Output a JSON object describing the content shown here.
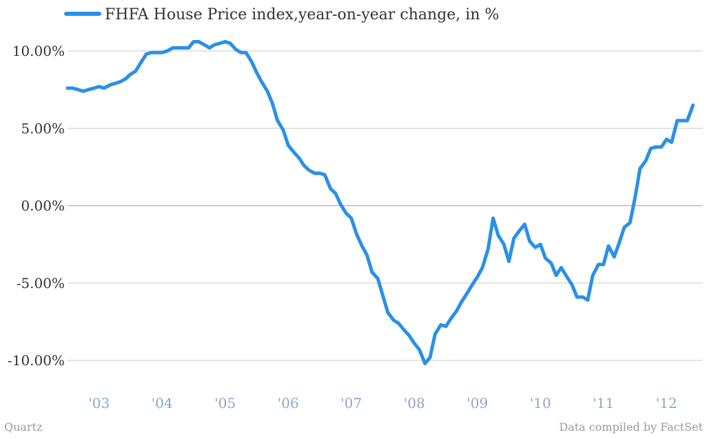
{
  "chart_data": {
    "type": "line",
    "series": [
      {
        "name": "FHFA House Price index,year-on-year change, in %",
        "color": "#2a90e8",
        "x": [
          2002.7,
          2002.78,
          2002.87,
          2002.95,
          2003.03,
          2003.12,
          2003.2,
          2003.28,
          2003.37,
          2003.45,
          2003.53,
          2003.62,
          2003.7,
          2003.78,
          2003.87,
          2003.95,
          2004.03,
          2004.12,
          2004.2,
          2004.28,
          2004.37,
          2004.45,
          2004.53,
          2004.62,
          2004.7,
          2004.78,
          2004.87,
          2004.95,
          2005.03,
          2005.12,
          2005.2,
          2005.28,
          2005.37,
          2005.45,
          2005.53,
          2005.62,
          2005.7,
          2005.78,
          2005.87,
          2005.95,
          2006.03,
          2006.12,
          2006.2,
          2006.28,
          2006.37,
          2006.45,
          2006.53,
          2006.62,
          2006.7,
          2006.78,
          2006.87,
          2006.95,
          2007.03,
          2007.12,
          2007.2,
          2007.28,
          2007.37,
          2007.45,
          2007.53,
          2007.62,
          2007.7,
          2007.78,
          2007.87,
          2007.95,
          2008.03,
          2008.12,
          2008.2,
          2008.28,
          2008.37,
          2008.45,
          2008.53,
          2008.62,
          2008.7,
          2008.78,
          2008.87,
          2008.95,
          2009.03,
          2009.12,
          2009.2,
          2009.28,
          2009.37,
          2009.45,
          2009.53,
          2009.62,
          2009.7,
          2009.78,
          2009.87,
          2009.95,
          2010.03,
          2010.12,
          2010.2,
          2010.28,
          2010.37,
          2010.45,
          2010.53,
          2010.62,
          2010.7,
          2010.78,
          2010.87,
          2010.95,
          2011.03,
          2011.12,
          2011.2,
          2011.28,
          2011.37,
          2011.45,
          2011.53,
          2011.62,
          2011.7,
          2011.78,
          2011.87,
          2011.95,
          2012.03,
          2012.12,
          2012.2,
          2012.28,
          2012.37,
          2012.45,
          2012.53,
          2012.62
        ],
        "values": [
          7.6,
          7.6,
          7.5,
          7.4,
          7.5,
          7.6,
          7.7,
          7.6,
          7.8,
          7.9,
          8.0,
          8.2,
          8.5,
          8.7,
          9.3,
          9.8,
          9.9,
          9.9,
          9.9,
          10.0,
          10.2,
          10.2,
          10.2,
          10.2,
          10.6,
          10.6,
          10.4,
          10.2,
          10.4,
          10.5,
          10.6,
          10.5,
          10.1,
          9.9,
          9.9,
          9.3,
          8.6,
          8.0,
          7.4,
          6.6,
          5.5,
          4.9,
          3.9,
          3.5,
          3.1,
          2.6,
          2.3,
          2.1,
          2.1,
          2.0,
          1.1,
          0.8,
          0.1,
          -0.5,
          -0.8,
          -1.8,
          -2.6,
          -3.2,
          -4.3,
          -4.7,
          -5.8,
          -6.9,
          -7.4,
          -7.6,
          -8.0,
          -8.4,
          -8.9,
          -9.3,
          -10.2,
          -9.8,
          -8.3,
          -7.7,
          -7.8,
          -7.3,
          -6.8,
          -6.2,
          -5.7,
          -5.1,
          -4.6,
          -4.0,
          -2.8,
          -0.8,
          -1.9,
          -2.5,
          -3.6,
          -2.1,
          -1.6,
          -1.2,
          -2.3,
          -2.7,
          -2.5,
          -3.4,
          -3.7,
          -4.5,
          -4.0,
          -4.6,
          -5.1,
          -5.9,
          -5.9,
          -6.1,
          -4.5,
          -3.8,
          -3.8,
          -2.6,
          -3.3,
          -2.4,
          -1.4,
          -1.1,
          0.5,
          2.4,
          2.9,
          3.7,
          3.8,
          3.8,
          4.3,
          4.1,
          5.5,
          5.5,
          5.5,
          6.5
        ]
      }
    ],
    "x_ticks": [
      {
        "value": 2003.2,
        "label": "'03"
      },
      {
        "value": 2004.2,
        "label": "'04"
      },
      {
        "value": 2005.2,
        "label": "'05"
      },
      {
        "value": 2006.2,
        "label": "'06"
      },
      {
        "value": 2007.2,
        "label": "'07"
      },
      {
        "value": 2008.2,
        "label": "'08"
      },
      {
        "value": 2009.2,
        "label": "'09"
      },
      {
        "value": 2010.2,
        "label": "'10"
      },
      {
        "value": 2011.2,
        "label": "'11"
      },
      {
        "value": 2012.2,
        "label": "'12"
      }
    ],
    "y_ticks": [
      {
        "value": 10,
        "label": "10.00%"
      },
      {
        "value": 5,
        "label": "5.00%"
      },
      {
        "value": 0,
        "label": "0.00%"
      },
      {
        "value": -5,
        "label": "-5.00%"
      },
      {
        "value": -10,
        "label": "-10.00%"
      }
    ],
    "xlim": [
      2002.7,
      2012.7
    ],
    "ylim": [
      -12,
      12
    ],
    "grid": true,
    "legend_position": "top-left",
    "zero_line_color": "#e07bd6"
  },
  "footer": {
    "source_left": "Quartz",
    "source_right": "Data compiled by FactSet"
  }
}
